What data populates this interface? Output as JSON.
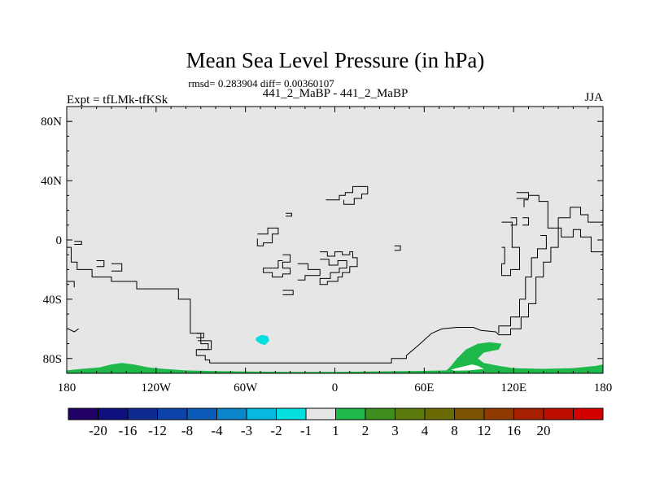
{
  "chart_data": {
    "type": "heatmap",
    "title": "Mean Sea Level Pressure (in hPa)",
    "stats_text": "rmsd= 0.283904 diff= 0.00360107",
    "subtitle_center": "441_2_MaBP - 441_2_MaBP",
    "subtitle_left": "Expt = tfLMk-tfKSk",
    "subtitle_right": "JJA",
    "xlabel": "",
    "ylabel": "",
    "xlim": [
      -180,
      180
    ],
    "ylim": [
      -90,
      90
    ],
    "x_ticks": [
      {
        "value": -180,
        "label": "180"
      },
      {
        "value": -120,
        "label": "120W"
      },
      {
        "value": -60,
        "label": "60W"
      },
      {
        "value": 0,
        "label": "0"
      },
      {
        "value": 60,
        "label": "60E"
      },
      {
        "value": 120,
        "label": "120E"
      },
      {
        "value": 180,
        "label": "180"
      }
    ],
    "y_ticks": [
      {
        "value": 80,
        "label": "80N"
      },
      {
        "value": 40,
        "label": "40N"
      },
      {
        "value": 0,
        "label": "0"
      },
      {
        "value": -40,
        "label": "40S"
      },
      {
        "value": -80,
        "label": "80S"
      }
    ],
    "background_color": "#e6e6e6",
    "colorbar": {
      "colors": [
        "#210066",
        "#0f0f80",
        "#0e2b94",
        "#0d43a8",
        "#0b5bbb",
        "#0a85cc",
        "#08b8de",
        "#05dfdf",
        "#e6e6e6",
        "#1fb84a",
        "#3f8c1f",
        "#5c7a0e",
        "#6b6b05",
        "#7a5200",
        "#8f3a00",
        "#a61f00",
        "#bd0c00",
        "#d40000"
      ],
      "labels": [
        "-20",
        "-16",
        "-12",
        "-8",
        "-4",
        "-3",
        "-2",
        "-1",
        "1",
        "2",
        "3",
        "4",
        "8",
        "12",
        "16",
        "20"
      ]
    },
    "regions": [
      {
        "name": "antarctic-positive-anomaly",
        "category": "1 to 2",
        "color": "#1fb84a",
        "polygon_lonlat": [
          [
            -180,
            -90
          ],
          [
            -180,
            -88
          ],
          [
            -170,
            -87
          ],
          [
            -158,
            -86
          ],
          [
            -150,
            -84
          ],
          [
            -143,
            -83
          ],
          [
            -135,
            -84
          ],
          [
            -125,
            -86
          ],
          [
            -115,
            -87
          ],
          [
            -100,
            -88
          ],
          [
            -80,
            -88.5
          ],
          [
            -60,
            -88.8
          ],
          [
            -30,
            -89
          ],
          [
            0,
            -89
          ],
          [
            30,
            -88.7
          ],
          [
            55,
            -88.4
          ],
          [
            75,
            -88
          ],
          [
            78,
            -85
          ],
          [
            82,
            -80
          ],
          [
            88,
            -74
          ],
          [
            96,
            -70
          ],
          [
            104,
            -69
          ],
          [
            112,
            -70
          ],
          [
            110,
            -74
          ],
          [
            100,
            -76
          ],
          [
            96,
            -80
          ],
          [
            100,
            -83
          ],
          [
            110,
            -85
          ],
          [
            120,
            -86.5
          ],
          [
            140,
            -87
          ],
          [
            160,
            -86.5
          ],
          [
            175,
            -85
          ],
          [
            180,
            -84
          ],
          [
            180,
            -90
          ]
        ]
      },
      {
        "name": "antarctic-ice-hole",
        "category": "-1 to 1",
        "color": "#ffffff",
        "polygon_lonlat": [
          [
            78,
            -87.5
          ],
          [
            86,
            -85.5
          ],
          [
            92,
            -84
          ],
          [
            96,
            -85
          ],
          [
            100,
            -87
          ],
          [
            90,
            -88
          ],
          [
            80,
            -88.2
          ]
        ]
      },
      {
        "name": "south-atlantic-negative-anomaly",
        "category": "-2 to -1",
        "color": "#05dfdf",
        "polygon_lonlat": [
          [
            -53,
            -66
          ],
          [
            -49,
            -64
          ],
          [
            -45,
            -65
          ],
          [
            -44,
            -68
          ],
          [
            -47,
            -71
          ],
          [
            -50,
            -70
          ],
          [
            -53,
            -68
          ]
        ]
      }
    ],
    "contours_lonlat": [
      [
        [
          -180,
          -5
        ],
        [
          -177,
          -5
        ],
        [
          -177,
          -15
        ],
        [
          -173,
          -15
        ],
        [
          -173,
          -20
        ],
        [
          -163,
          -20
        ],
        [
          -163,
          -25
        ],
        [
          -150,
          -25
        ],
        [
          -150,
          -28
        ],
        [
          -133,
          -28
        ],
        [
          -133,
          -33
        ],
        [
          -105,
          -33
        ],
        [
          -105,
          -40
        ],
        [
          -97,
          -40
        ],
        [
          -97,
          -63
        ],
        [
          -90,
          -63
        ],
        [
          -90,
          -70
        ],
        [
          -85,
          -70
        ],
        [
          -85,
          -74
        ],
        [
          -93,
          -74
        ],
        [
          -93,
          -78
        ],
        [
          -87,
          -78
        ],
        [
          -87,
          -81
        ],
        [
          -84,
          -81
        ],
        [
          -84,
          -83
        ],
        [
          38,
          -83
        ],
        [
          38,
          -80
        ],
        [
          48,
          -80
        ],
        [
          48,
          -78
        ],
        [
          55,
          -72
        ],
        [
          65,
          -63
        ],
        [
          72,
          -60
        ],
        [
          82,
          -59
        ],
        [
          93,
          -59
        ],
        [
          98,
          -61
        ],
        [
          108,
          -62
        ],
        [
          110,
          -64
        ],
        [
          118,
          -64
        ],
        [
          118,
          -60
        ],
        [
          125,
          -60
        ],
        [
          125,
          -52
        ],
        [
          130,
          -52
        ],
        [
          130,
          -43
        ],
        [
          135,
          -43
        ],
        [
          135,
          -25
        ],
        [
          140,
          -25
        ],
        [
          140,
          -15
        ],
        [
          145,
          -15
        ],
        [
          145,
          -5
        ],
        [
          150,
          -5
        ],
        [
          150,
          15
        ],
        [
          158,
          15
        ],
        [
          158,
          22
        ],
        [
          165,
          22
        ],
        [
          165,
          17
        ],
        [
          170,
          17
        ],
        [
          170,
          12
        ],
        [
          180,
          12
        ]
      ],
      [
        [
          -180,
          -28
        ],
        [
          -175,
          -28
        ],
        [
          -175,
          -32
        ]
      ],
      [
        [
          -179,
          -60
        ],
        [
          -175,
          -62
        ],
        [
          -172,
          -60
        ]
      ],
      [
        [
          -175,
          -1
        ],
        [
          -170,
          -1
        ],
        [
          -170,
          -3
        ],
        [
          -175,
          -3
        ]
      ],
      [
        [
          -160,
          -14
        ],
        [
          -155,
          -14
        ],
        [
          -155,
          -18
        ],
        [
          -160,
          -18
        ]
      ],
      [
        [
          -150,
          -16
        ],
        [
          -143,
          -16
        ],
        [
          -143,
          -21
        ],
        [
          -150,
          -21
        ]
      ],
      [
        [
          -93,
          -63
        ],
        [
          -88,
          -63
        ],
        [
          -88,
          -66
        ],
        [
          -93,
          -66
        ]
      ],
      [
        [
          -92,
          -68
        ],
        [
          -83,
          -68
        ],
        [
          -83,
          -74
        ],
        [
          -92,
          -74
        ]
      ],
      [
        [
          -52,
          1
        ],
        [
          -52,
          -4
        ],
        [
          -48,
          -4
        ],
        [
          -48,
          -2
        ],
        [
          -42,
          -2
        ],
        [
          -42,
          4
        ],
        [
          -38,
          4
        ],
        [
          -38,
          8
        ],
        [
          -45,
          8
        ],
        [
          -45,
          4
        ],
        [
          -52,
          4
        ]
      ],
      [
        [
          -35,
          -10
        ],
        [
          -30,
          -10
        ],
        [
          -30,
          -15
        ],
        [
          -35,
          -15
        ],
        [
          -35,
          -19
        ],
        [
          -30,
          -19
        ],
        [
          -30,
          -23
        ],
        [
          -35,
          -23
        ],
        [
          -35,
          -25
        ],
        [
          -42,
          -25
        ],
        [
          -42,
          -22
        ],
        [
          -48,
          -22
        ],
        [
          -48,
          -19
        ],
        [
          -38,
          -19
        ],
        [
          -38,
          -14
        ],
        [
          -35,
          -14
        ]
      ],
      [
        [
          -25,
          -16
        ],
        [
          -18,
          -16
        ],
        [
          -18,
          -20
        ],
        [
          -10,
          -20
        ],
        [
          -10,
          -24
        ],
        [
          -20,
          -24
        ],
        [
          -20,
          -27
        ],
        [
          -25,
          -27
        ]
      ],
      [
        [
          -35,
          -34
        ],
        [
          -28,
          -34
        ],
        [
          -28,
          -37
        ],
        [
          -35,
          -37
        ]
      ],
      [
        [
          -10,
          -8
        ],
        [
          -5,
          -8
        ],
        [
          -5,
          -11
        ],
        [
          0,
          -11
        ],
        [
          0,
          -8
        ],
        [
          5,
          -8
        ],
        [
          5,
          -10
        ],
        [
          10,
          -10
        ],
        [
          10,
          -8
        ],
        [
          12,
          -8
        ],
        [
          12,
          -12
        ],
        [
          15,
          -12
        ],
        [
          15,
          -18
        ],
        [
          10,
          -18
        ],
        [
          10,
          -22
        ],
        [
          5,
          -22
        ],
        [
          5,
          -25
        ],
        [
          2,
          -25
        ],
        [
          2,
          -28
        ],
        [
          -5,
          -28
        ],
        [
          -5,
          -30
        ],
        [
          -10,
          -30
        ],
        [
          -10,
          -26
        ],
        [
          -3,
          -26
        ],
        [
          -3,
          -22
        ],
        [
          3,
          -22
        ],
        [
          3,
          -19
        ],
        [
          8,
          -19
        ],
        [
          8,
          -14
        ],
        [
          2,
          -14
        ],
        [
          2,
          -17
        ],
        [
          -4,
          -17
        ],
        [
          -4,
          -13
        ],
        [
          -10,
          -13
        ]
      ],
      [
        [
          -6,
          27
        ],
        [
          3,
          27
        ],
        [
          3,
          30
        ],
        [
          7,
          30
        ],
        [
          7,
          32
        ],
        [
          12,
          32
        ],
        [
          12,
          36
        ],
        [
          22,
          36
        ],
        [
          22,
          31
        ],
        [
          18,
          31
        ],
        [
          18,
          28
        ],
        [
          13,
          28
        ],
        [
          13,
          24
        ],
        [
          6,
          24
        ],
        [
          6,
          27
        ]
      ],
      [
        [
          -33,
          16
        ],
        [
          -29,
          16
        ],
        [
          -29,
          18
        ],
        [
          -33,
          18
        ]
      ],
      [
        [
          40,
          -4
        ],
        [
          44,
          -4
        ],
        [
          44,
          -7
        ],
        [
          40,
          -7
        ]
      ],
      [
        [
          130,
          30
        ],
        [
          137,
          30
        ],
        [
          137,
          26
        ],
        [
          143,
          26
        ],
        [
          143,
          8
        ],
        [
          152,
          8
        ],
        [
          152,
          2
        ],
        [
          160,
          2
        ],
        [
          160,
          7
        ],
        [
          165,
          7
        ],
        [
          165,
          2
        ],
        [
          172,
          2
        ],
        [
          172,
          -8
        ],
        [
          180,
          -8
        ]
      ],
      [
        [
          122,
          32
        ],
        [
          130,
          32
        ],
        [
          130,
          28
        ],
        [
          122,
          28
        ]
      ],
      [
        [
          130,
          27
        ],
        [
          127,
          27
        ],
        [
          127,
          22
        ]
      ],
      [
        [
          126,
          15
        ],
        [
          130,
          15
        ],
        [
          130,
          10
        ],
        [
          126,
          10
        ]
      ],
      [
        [
          118,
          15
        ],
        [
          122,
          15
        ],
        [
          122,
          10
        ],
        [
          118,
          10
        ]
      ],
      [
        [
          112,
          12
        ],
        [
          119,
          12
        ],
        [
          119,
          -5
        ],
        [
          124,
          -5
        ],
        [
          124,
          -20
        ],
        [
          118,
          -20
        ],
        [
          118,
          -24
        ],
        [
          112,
          -24
        ],
        [
          112,
          -16
        ],
        [
          114,
          -16
        ],
        [
          114,
          -5
        ],
        [
          112,
          -5
        ]
      ],
      [
        [
          138,
          3
        ],
        [
          142,
          3
        ],
        [
          142,
          -6
        ],
        [
          136,
          -6
        ],
        [
          136,
          -12
        ],
        [
          132,
          -12
        ],
        [
          132,
          -25
        ],
        [
          128,
          -25
        ],
        [
          128,
          -40
        ],
        [
          124,
          -40
        ],
        [
          124,
          -52
        ],
        [
          118,
          -52
        ],
        [
          118,
          -58
        ],
        [
          110,
          -58
        ],
        [
          110,
          -63
        ]
      ]
    ]
  }
}
